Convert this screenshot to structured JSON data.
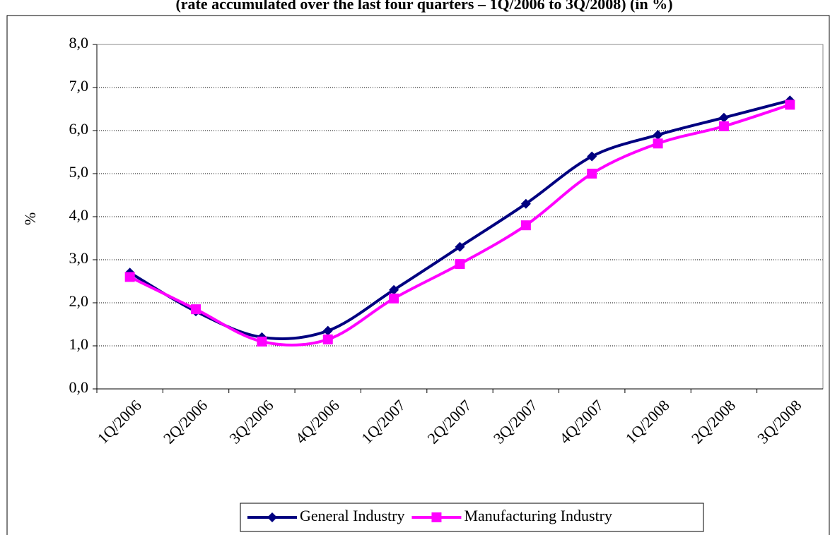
{
  "chart_data": {
    "type": "line",
    "title": "(rate accumulated over the last four quarters – 1Q/2006 to 3Q/2008) (in %)",
    "y_label": "%",
    "categories": [
      "1Q/2006",
      "2Q/2006",
      "3Q/2006",
      "4Q/2006",
      "1Q/2007",
      "2Q/2007",
      "3Q/2007",
      "4Q/2007",
      "1Q/2008",
      "2Q/2008",
      "3Q/2008"
    ],
    "series": [
      {
        "name": "General Industry",
        "color": "#000080",
        "marker": "diamond",
        "values": [
          2.7,
          1.8,
          1.2,
          1.35,
          2.3,
          3.3,
          4.3,
          5.4,
          5.9,
          6.3,
          6.7
        ]
      },
      {
        "name": "Manufacturing Industry",
        "color": "#ff00ff",
        "marker": "square",
        "values": [
          2.6,
          1.85,
          1.1,
          1.15,
          2.1,
          2.9,
          3.8,
          5.0,
          5.7,
          6.1,
          6.6
        ]
      }
    ],
    "ylim": [
      0,
      8
    ],
    "yticks": [
      {
        "value": 0,
        "label": "0,0"
      },
      {
        "value": 1,
        "label": "1,0"
      },
      {
        "value": 2,
        "label": "2,0"
      },
      {
        "value": 3,
        "label": "3,0"
      },
      {
        "value": 4,
        "label": "4,0"
      },
      {
        "value": 5,
        "label": "5,0"
      },
      {
        "value": 6,
        "label": "6,0"
      },
      {
        "value": 7,
        "label": "7,0"
      },
      {
        "value": 8,
        "label": "8,0"
      }
    ],
    "grid": true,
    "smooth": true,
    "legend": "bottom"
  }
}
